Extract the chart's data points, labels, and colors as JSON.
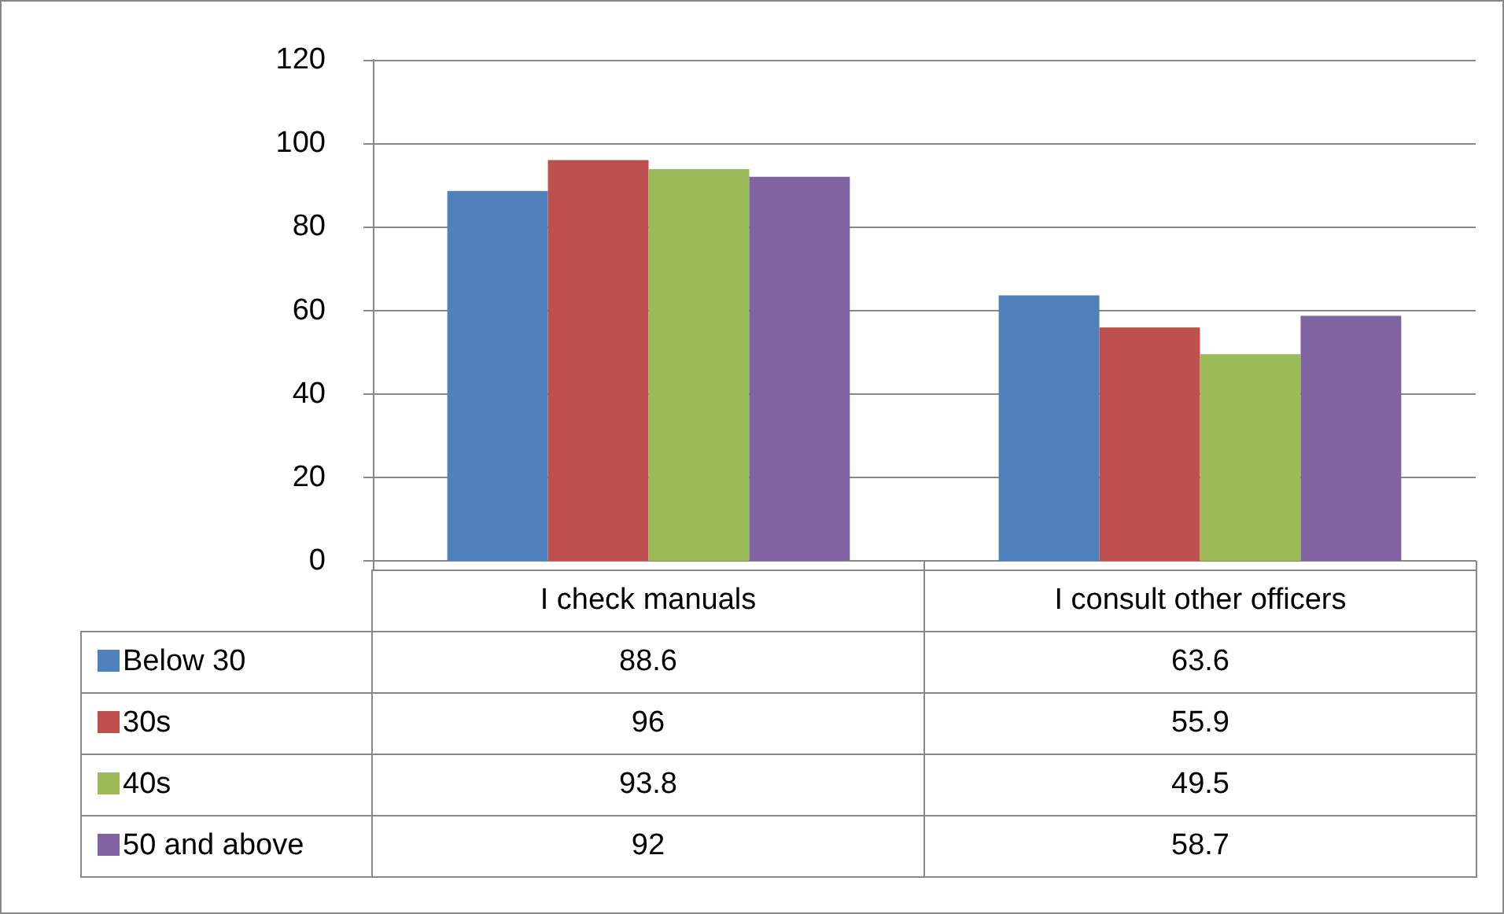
{
  "chart_data": {
    "type": "bar",
    "categories": [
      "I check manuals",
      "I consult other officers"
    ],
    "series": [
      {
        "name": "Below 30",
        "color": "#4f81bd",
        "values": [
          88.6,
          63.6
        ]
      },
      {
        "name": "30s",
        "color": "#c0504d",
        "values": [
          96,
          55.9
        ]
      },
      {
        "name": "40s",
        "color": "#9bbb59",
        "values": [
          93.8,
          49.5
        ]
      },
      {
        "name": "50 and above",
        "color": "#8064a2",
        "values": [
          92,
          58.7
        ]
      }
    ],
    "ylim": [
      0,
      120
    ],
    "yticks": [
      0,
      20,
      40,
      60,
      80,
      100,
      120
    ],
    "grid": "y",
    "legend": "bottom",
    "data_labels": true
  }
}
